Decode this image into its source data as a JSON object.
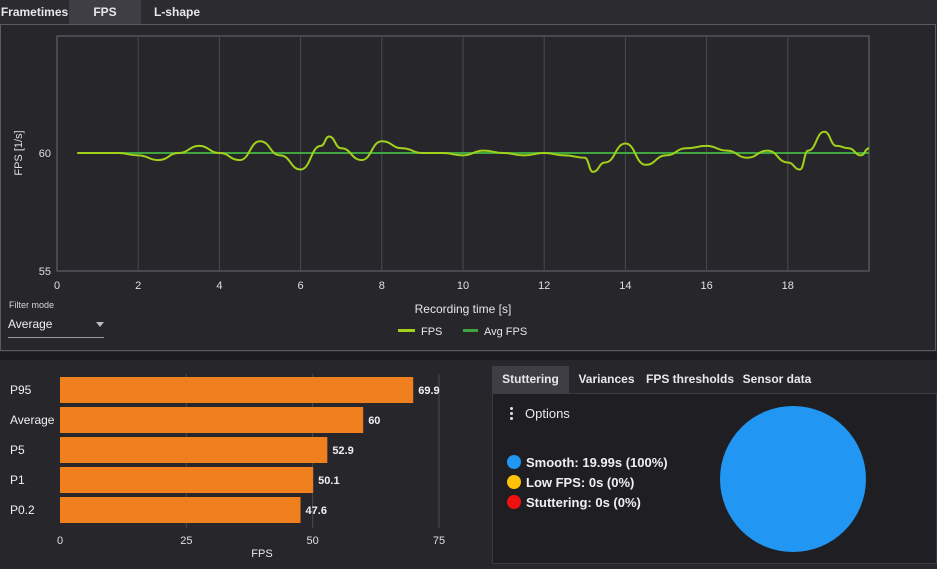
{
  "top_tabs": [
    "Frametimes",
    "FPS",
    "L-shape"
  ],
  "top_tab_active": "FPS",
  "fps_chart": {
    "type": "line",
    "ylabel": "FPS [1/s]",
    "xlabel": "Recording time [s]",
    "ylim": [
      55,
      65
    ],
    "xlim": [
      0,
      20
    ],
    "y_ticks": [
      "55",
      "60"
    ],
    "x_ticks": [
      "0",
      "2",
      "4",
      "6",
      "8",
      "10",
      "12",
      "14",
      "16",
      "18"
    ],
    "series": [
      {
        "name": "FPS",
        "color": "#a2d11c",
        "x": [
          0.5,
          1.0,
          1.5,
          2.0,
          2.5,
          3.0,
          3.5,
          4.0,
          4.5,
          5.0,
          5.5,
          6.0,
          6.5,
          6.7,
          7.0,
          7.5,
          8.0,
          8.5,
          9.0,
          9.5,
          10.0,
          10.5,
          11.0,
          11.5,
          12.0,
          12.5,
          13.0,
          13.2,
          13.5,
          14.0,
          14.5,
          15.0,
          15.5,
          16.0,
          16.5,
          17.0,
          17.5,
          18.0,
          18.3,
          18.5,
          18.9,
          19.2,
          19.5,
          19.8,
          20.0
        ],
        "values": [
          60,
          60,
          60,
          59.9,
          59.7,
          60,
          60.3,
          60,
          59.7,
          60.5,
          59.9,
          59.3,
          60.3,
          60.7,
          60.2,
          59.7,
          60.5,
          60.2,
          60,
          60,
          59.9,
          60.1,
          60,
          59.9,
          60,
          59.9,
          59.8,
          59.2,
          59.6,
          60.4,
          59.5,
          59.9,
          60.2,
          60.3,
          60.1,
          59.8,
          60.1,
          59.6,
          59.3,
          60.1,
          60.9,
          60.3,
          60.2,
          59.9,
          60.2
        ]
      },
      {
        "name": "Avg FPS",
        "color": "#3fa63f",
        "x": [
          0.5,
          20.0
        ],
        "values": [
          60,
          60
        ]
      }
    ]
  },
  "filter": {
    "label": "Filter mode",
    "value": "Average"
  },
  "bar_chart": {
    "type": "bar",
    "orientation": "horizontal",
    "xlabel": "FPS",
    "xlim": [
      0,
      75
    ],
    "x_ticks": [
      "0",
      "25",
      "50",
      "75"
    ],
    "categories": [
      "P95",
      "Average",
      "P5",
      "P1",
      "P0.2"
    ],
    "values": [
      69.9,
      60,
      52.9,
      50.1,
      47.6
    ],
    "labels": [
      "69.9",
      "60",
      "52.9",
      "50.1",
      "47.6"
    ],
    "bar_color": "#f07f1e"
  },
  "right_tabs": [
    "Stuttering",
    "Variances",
    "FPS thresholds",
    "Sensor data"
  ],
  "right_tab_active": "Stuttering",
  "options_label": "Options",
  "stutter_legend": [
    {
      "label": "Smooth:",
      "value": "19.99s (100%)",
      "color": "#2196f3"
    },
    {
      "label": "Low FPS:",
      "value": "0s (0%)",
      "color": "#ffc107"
    },
    {
      "label": "Stuttering:",
      "value": "0s (0%)",
      "color": "#f01010"
    }
  ],
  "pie": {
    "type": "pie",
    "slices": [
      {
        "label": "Smooth",
        "value": 100,
        "color": "#2196f3"
      },
      {
        "label": "Low FPS",
        "value": 0,
        "color": "#ffc107"
      },
      {
        "label": "Stuttering",
        "value": 0,
        "color": "#f01010"
      }
    ]
  }
}
